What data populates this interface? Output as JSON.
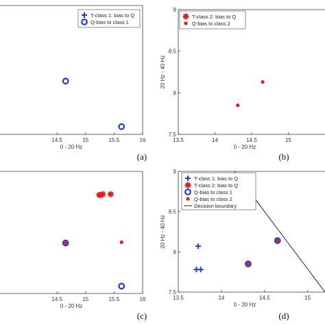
{
  "chart_data": [
    {
      "type": "scatter",
      "label": "(a)",
      "xlabel": "0 - 20 Hz",
      "ylabel": "",
      "xlim": [
        13.5,
        16
      ],
      "ylim": [
        7.5,
        9
      ],
      "xticks": [
        14.5,
        15,
        15.5,
        16
      ],
      "yticks": [],
      "legend_position": "top-right",
      "series": [
        {
          "name": "T-class 1: bias to Q",
          "marker": "plus",
          "color": "#1f3fbf",
          "x": [],
          "y": []
        },
        {
          "name": "Q-bias to class 1",
          "marker": "ring",
          "color": "#1f3fbf",
          "x": [
            14.65,
            15.63
          ],
          "y": [
            8.12,
            7.59
          ]
        }
      ]
    },
    {
      "type": "scatter",
      "label": "(b)",
      "xlabel": "0 - 20 Hz",
      "ylabel": "20 Hz - 40 Hz",
      "xlim": [
        13.5,
        15.5
      ],
      "ylim": [
        7.5,
        9
      ],
      "xticks": [
        13.5,
        14,
        14.5,
        15
      ],
      "yticks": [
        7.5,
        8,
        8.5,
        9
      ],
      "legend_position": "top-right",
      "series": [
        {
          "name": "T-class 2: bias to Q",
          "marker": "asterisk",
          "color": "#e21b1b",
          "x": [],
          "y": []
        },
        {
          "name": "Q-bias to class 2",
          "marker": "dot",
          "color": "#e21b1b",
          "x": [
            14.31,
            14.65
          ],
          "y": [
            7.85,
            8.13
          ]
        }
      ]
    },
    {
      "type": "scatter",
      "label": "(c)",
      "xlabel": "0 - 20 Hz",
      "ylabel": "",
      "xlim": [
        13.5,
        16
      ],
      "ylim": [
        7.5,
        9
      ],
      "xticks": [
        14.5,
        15,
        15.5,
        16
      ],
      "yticks": [],
      "series": [
        {
          "name": "T-class 2",
          "marker": "asterisk",
          "color": "#e21b1b",
          "x": [
            15.24,
            15.27,
            15.3,
            15.44
          ],
          "y": [
            8.71,
            8.71,
            8.72,
            8.72
          ]
        },
        {
          "name": "Q-bias to class 1",
          "marker": "ring",
          "color": "#1f3fbf",
          "x": [
            14.65,
            15.63
          ],
          "y": [
            8.12,
            7.59
          ]
        },
        {
          "name": "Q-bias to class 2",
          "marker": "dot",
          "color": "#e21b1b",
          "x": [
            14.65,
            15.63
          ],
          "y": [
            8.12,
            8.13
          ]
        }
      ]
    },
    {
      "type": "scatter",
      "label": "(d)",
      "xlabel": "0 - 20 Hz",
      "ylabel": "20 Hz - 40 Hz",
      "xlim": [
        13.5,
        15.2
      ],
      "ylim": [
        7.5,
        9
      ],
      "xticks": [
        13.5,
        14,
        14.5,
        15
      ],
      "yticks": [
        7.5,
        8,
        8.5,
        9
      ],
      "legend_position": "top-left",
      "series": [
        {
          "name": "T-class 1: bias to Q",
          "marker": "plus",
          "color": "#1f3fbf",
          "x": [
            13.73,
            13.71,
            13.76
          ],
          "y": [
            8.07,
            7.78,
            7.78
          ]
        },
        {
          "name": "T-class 2: bias to Q",
          "marker": "asterisk",
          "color": "#e21b1b",
          "x": [],
          "y": []
        },
        {
          "name": "Q-bias to class 1",
          "marker": "ring",
          "color": "#1f3fbf",
          "x": [
            14.31,
            14.65
          ],
          "y": [
            7.85,
            8.14
          ]
        },
        {
          "name": "Q-bias to class 2",
          "marker": "dot",
          "color": "#e21b1b",
          "x": [
            14.31,
            14.65
          ],
          "y": [
            7.85,
            8.14
          ]
        },
        {
          "name": "Decision boundary",
          "marker": "line",
          "color": "#222222",
          "x": [
            14.15,
            15.2
          ],
          "y": [
            9,
            7.5
          ]
        }
      ]
    }
  ]
}
